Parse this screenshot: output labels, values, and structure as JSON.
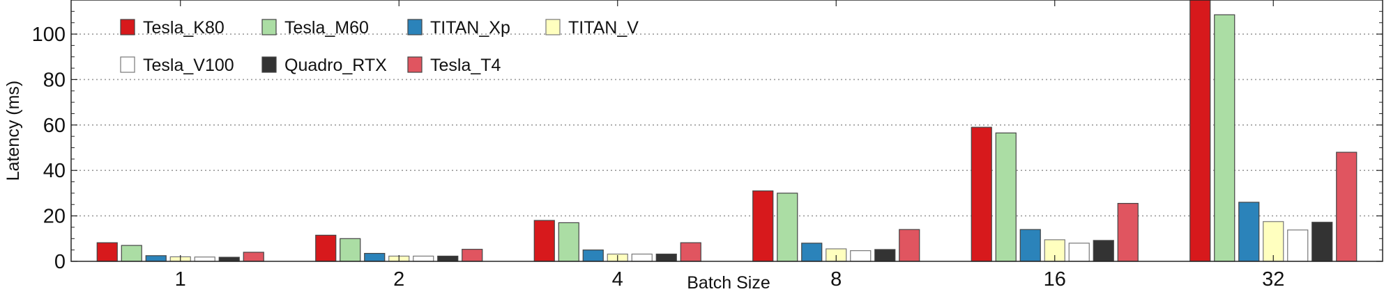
{
  "chart_data": {
    "type": "bar",
    "title": "",
    "xlabel": "Batch Size",
    "ylabel": "Latency (ms)",
    "ylim": [
      0,
      115
    ],
    "yticks": [
      0,
      20,
      40,
      60,
      80,
      100
    ],
    "grid": "horizontal dotted",
    "legend_position": "top-left",
    "categories": [
      "1",
      "2",
      "4",
      "8",
      "16",
      "32"
    ],
    "series": [
      {
        "name": "Tesla_K80",
        "color": "#d7191c",
        "values": [
          8.2,
          11.5,
          18,
          31,
          59,
          115
        ]
      },
      {
        "name": "Tesla_M60",
        "color": "#abdda4",
        "values": [
          7,
          10,
          17,
          30,
          56.5,
          108.5
        ]
      },
      {
        "name": "TITAN_Xp",
        "color": "#2b83ba",
        "values": [
          2.5,
          3.5,
          5,
          8,
          14,
          26
        ]
      },
      {
        "name": "TITAN_V",
        "color": "#ffffbf",
        "values": [
          2,
          2.3,
          3.2,
          5.5,
          9.5,
          17.5
        ]
      },
      {
        "name": "Tesla_V100",
        "color": "#ffffff",
        "values": [
          1.9,
          2.3,
          3.2,
          4.7,
          8,
          13.8
        ]
      },
      {
        "name": "Quadro_RTX",
        "color": "#333333",
        "values": [
          1.8,
          2.3,
          3.2,
          5.2,
          9.2,
          17.2
        ]
      },
      {
        "name": "Tesla_T4",
        "color": "#e05560",
        "values": [
          4,
          5.3,
          8.2,
          14,
          25.5,
          48
        ]
      }
    ]
  }
}
